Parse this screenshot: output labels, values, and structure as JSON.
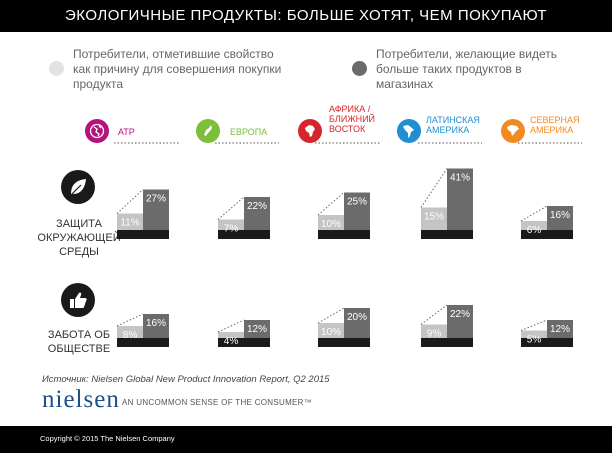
{
  "header": {
    "title": "ЭКОЛОГИЧНЫЕ ПРОДУКТЫ: БОЛЬШЕ ХОТЯТ, ЧЕМ ПОКУПАЮТ"
  },
  "legend": {
    "bought": {
      "line1": "Потребители,  отметившие  свойство",
      "line2": "как причину для совершения покупки",
      "line3": "продукта",
      "color": "#e3e3e3"
    },
    "want": {
      "line1": "Потребители,  желающие  видеть",
      "line2": "больше  таких  продуктов  в",
      "line3": "магазинах",
      "color": "#6b6b6b"
    }
  },
  "regions": [
    {
      "line1": "АТР",
      "line2": "",
      "line3": "",
      "color": "#b5127e",
      "icon": "globe-icon"
    },
    {
      "line1": "ЕВРОПА",
      "line2": "",
      "line3": "",
      "color": "#7bbf3a",
      "icon": "europe-map-icon"
    },
    {
      "line1": "АФРИКА /",
      "line2": "БЛИЖНИЙ",
      "line3": "ВОСТОК",
      "color": "#d6262d",
      "icon": "africa-map-icon"
    },
    {
      "line1": "ЛАТИНСКАЯ",
      "line2": "АМЕРИКА",
      "line3": "",
      "color": "#1f8fd2",
      "icon": "latin-america-map-icon"
    },
    {
      "line1": "СЕВЕРНАЯ",
      "line2": "АМЕРИКА",
      "line3": "",
      "color": "#f28a22",
      "icon": "north-america-map-icon"
    }
  ],
  "categories": [
    {
      "line1": "ЗАЩИТА",
      "line2": "ОКРУЖАЮЩЕЙ",
      "line3": "СРЕДЫ",
      "icon": "leaf-icon"
    },
    {
      "line1": "ЗАБОТА ОБ",
      "line2": "ОБЩЕСТВЕ",
      "line3": "",
      "icon": "thumbs-up-icon"
    }
  ],
  "chart_data": {
    "type": "bar",
    "categories": [
      "АТР",
      "ЕВРОПА",
      "АФРИКА / БЛИЖНИЙ ВОСТОК",
      "ЛАТИНСКАЯ АМЕРИКА",
      "СЕВЕРНАЯ АМЕРИКА"
    ],
    "panels": [
      {
        "name": "ЗАЩИТА ОКРУЖАЮЩЕЙ СРЕДЫ",
        "series": [
          {
            "values": [
              11,
              7,
              10,
              15,
              6
            ],
            "labels": [
              "11%",
              "7%",
              "10%",
              "15%",
              "6%"
            ]
          },
          {
            "values": [
              27,
              22,
              25,
              41,
              16
            ],
            "labels": [
              "27%",
              "22%",
              "25%",
              "41%",
              "16%"
            ]
          }
        ]
      },
      {
        "name": "ЗАБОТА ОБ ОБЩЕСТВЕ",
        "series": [
          {
            "values": [
              8,
              4,
              10,
              9,
              5
            ],
            "labels": [
              "8%",
              "4%",
              "10%",
              "9%",
              "5%"
            ]
          },
          {
            "values": [
              16,
              12,
              20,
              22,
              12
            ],
            "labels": [
              "16%",
              "12%",
              "20%",
              "22%",
              "12%"
            ]
          }
        ]
      }
    ],
    "colors": {
      "bought": "#c4c4c4",
      "want": "#6b6b6b",
      "base": "#1a1a1a"
    }
  },
  "source": "Источник: Nielsen Global New Product Innovation Report, Q2 2015",
  "logo": {
    "name": "nielsen",
    "tagline": "AN UNCOMMON SENSE OF THE CONSUMER™"
  },
  "footer": {
    "copyright": "Copyright © 2015 The Nielsen Company"
  }
}
